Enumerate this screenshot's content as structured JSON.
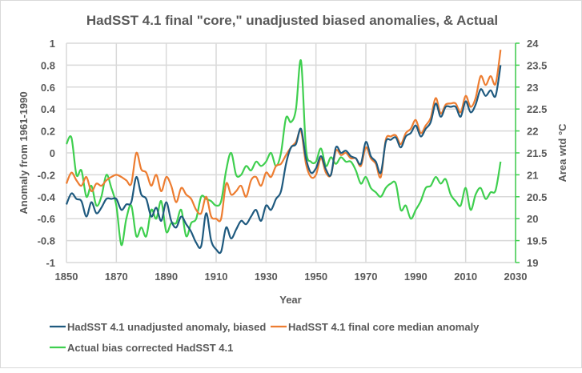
{
  "chart_data": {
    "type": "line",
    "title": "HadSST 4.1 final \"core,\" unadjusted biased anomalies, & Actual",
    "xlabel": "Year",
    "ylabel": "Anomaly from 1961-1990",
    "y2label": "Area wtd °C",
    "xlim": [
      1850,
      2030
    ],
    "ylim": [
      -1,
      1
    ],
    "y2lim": [
      19,
      24
    ],
    "x_ticks": [
      "1850",
      "1870",
      "1890",
      "1910",
      "1930",
      "1950",
      "1970",
      "1990",
      "2010",
      "2030"
    ],
    "y_ticks": [
      "1",
      "0.8",
      "0.6",
      "0.4",
      "0.2",
      "0",
      "-0.2",
      "-0.4",
      "-0.6",
      "-0.8",
      "-1"
    ],
    "y2_ticks": [
      "24",
      "23.5",
      "23",
      "22.5",
      "22",
      "21.5",
      "21",
      "20.5",
      "20",
      "19.5",
      "19"
    ],
    "grid": true,
    "legend_position": "bottom",
    "x": [
      1850,
      1852,
      1854,
      1856,
      1858,
      1860,
      1862,
      1864,
      1866,
      1868,
      1870,
      1872,
      1874,
      1876,
      1878,
      1880,
      1882,
      1884,
      1886,
      1888,
      1890,
      1892,
      1894,
      1896,
      1898,
      1900,
      1902,
      1904,
      1906,
      1908,
      1910,
      1912,
      1914,
      1916,
      1918,
      1920,
      1922,
      1924,
      1926,
      1928,
      1930,
      1932,
      1934,
      1936,
      1938,
      1940,
      1942,
      1944,
      1946,
      1948,
      1950,
      1952,
      1954,
      1956,
      1958,
      1960,
      1962,
      1964,
      1966,
      1968,
      1970,
      1972,
      1974,
      1976,
      1978,
      1980,
      1982,
      1984,
      1986,
      1988,
      1990,
      1992,
      1994,
      1996,
      1998,
      2000,
      2002,
      2004,
      2006,
      2008,
      2010,
      2012,
      2014,
      2016,
      2018,
      2020,
      2022,
      2024
    ],
    "series": [
      {
        "name": "HadSST 4.1 unadjusted anomaly, biased",
        "axis": "left",
        "color": "#1f5a7f",
        "values": [
          -0.47,
          -0.37,
          -0.42,
          -0.44,
          -0.58,
          -0.45,
          -0.55,
          -0.5,
          -0.42,
          -0.42,
          -0.42,
          -0.52,
          -0.47,
          -0.45,
          -0.22,
          -0.38,
          -0.42,
          -0.58,
          -0.5,
          -0.62,
          -0.45,
          -0.62,
          -0.68,
          -0.58,
          -0.65,
          -0.72,
          -0.82,
          -0.85,
          -0.55,
          -0.8,
          -0.88,
          -0.9,
          -0.68,
          -0.78,
          -0.7,
          -0.62,
          -0.65,
          -0.58,
          -0.52,
          -0.62,
          -0.48,
          -0.52,
          -0.42,
          -0.35,
          -0.1,
          0.05,
          0.08,
          0.22,
          -0.05,
          -0.18,
          -0.14,
          -0.03,
          -0.15,
          -0.2,
          0.05,
          0.0,
          0.02,
          -0.03,
          -0.05,
          -0.1,
          0.1,
          -0.03,
          -0.08,
          -0.18,
          0.1,
          0.12,
          0.14,
          0.05,
          0.15,
          0.18,
          0.25,
          0.15,
          0.22,
          0.28,
          0.45,
          0.33,
          0.42,
          0.42,
          0.42,
          0.33,
          0.47,
          0.37,
          0.44,
          0.58,
          0.52,
          0.57,
          0.52,
          0.8
        ]
      },
      {
        "name": "HadSST 4.1 final core median anomaly",
        "axis": "left",
        "color": "#ed7d31",
        "values": [
          -0.28,
          -0.18,
          -0.25,
          -0.3,
          -0.22,
          -0.35,
          -0.28,
          -0.3,
          -0.25,
          -0.22,
          -0.2,
          -0.22,
          -0.25,
          -0.28,
          0.0,
          -0.15,
          -0.18,
          -0.3,
          -0.2,
          -0.35,
          -0.22,
          -0.3,
          -0.45,
          -0.32,
          -0.38,
          -0.42,
          -0.52,
          -0.55,
          -0.4,
          -0.58,
          -0.6,
          -0.6,
          -0.28,
          -0.38,
          -0.35,
          -0.3,
          -0.4,
          -0.25,
          -0.22,
          -0.3,
          -0.18,
          -0.22,
          -0.12,
          -0.1,
          -0.02,
          0.05,
          0.1,
          0.2,
          -0.1,
          -0.22,
          -0.2,
          -0.05,
          -0.18,
          -0.2,
          0.02,
          -0.02,
          0.0,
          -0.05,
          -0.05,
          -0.12,
          0.05,
          -0.05,
          -0.1,
          -0.22,
          0.12,
          0.15,
          0.16,
          0.08,
          0.18,
          0.22,
          0.3,
          0.18,
          0.25,
          0.32,
          0.5,
          0.36,
          0.44,
          0.45,
          0.45,
          0.37,
          0.52,
          0.42,
          0.5,
          0.7,
          0.62,
          0.7,
          0.63,
          0.94
        ]
      },
      {
        "name": "Actual bias corrected HadSST 4.1",
        "axis": "right",
        "color": "#3fcf4f",
        "values": [
          21.7,
          21.85,
          21.0,
          21.1,
          20.5,
          20.75,
          20.3,
          20.5,
          21.0,
          20.7,
          20.3,
          19.4,
          20.0,
          20.3,
          19.6,
          19.8,
          19.6,
          20.2,
          20.0,
          20.4,
          19.7,
          19.9,
          19.9,
          20.2,
          19.6,
          19.9,
          20.0,
          20.5,
          20.45,
          20.4,
          20.3,
          20.4,
          21.1,
          21.5,
          21.0,
          21.0,
          21.2,
          21.1,
          21.3,
          21.2,
          21.3,
          21.5,
          21.2,
          21.5,
          22.3,
          22.2,
          22.5,
          23.6,
          21.6,
          21.3,
          21.3,
          21.6,
          21.2,
          21.4,
          21.25,
          21.4,
          21.3,
          21.3,
          21.1,
          20.8,
          20.95,
          20.7,
          20.6,
          20.5,
          20.7,
          20.8,
          20.8,
          20.2,
          20.3,
          20.0,
          20.2,
          20.4,
          20.7,
          20.75,
          20.95,
          20.8,
          20.9,
          20.55,
          20.4,
          20.3,
          20.7,
          20.2,
          20.55,
          20.7,
          20.45,
          20.6,
          20.65,
          21.3
        ]
      }
    ]
  }
}
